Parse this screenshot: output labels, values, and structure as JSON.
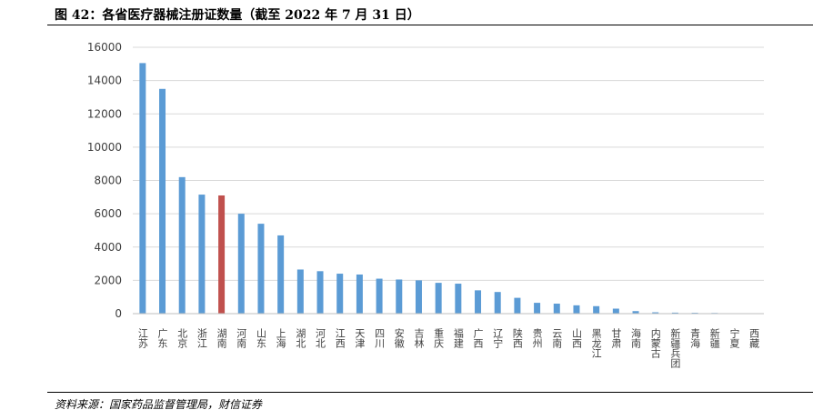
{
  "title": "图 42：各省医疗器械注册证数量（截至 2022 年 7 月 31 日）",
  "source": "资料来源：国家药品监督管理局，财信证券",
  "colors": {
    "bar": "#5B9BD5",
    "highlight": "#C0504D"
  },
  "chart_data": {
    "type": "bar",
    "title": "各省医疗器械注册证数量（截至 2022 年 7 月 31 日）",
    "xlabel": "",
    "ylabel": "",
    "ylim": [
      0,
      16000
    ],
    "yticks": [
      0,
      2000,
      4000,
      6000,
      8000,
      10000,
      12000,
      14000,
      16000
    ],
    "grid": true,
    "legend": "none",
    "highlight_category": "湖南",
    "categories": [
      "江苏",
      "广东",
      "北京",
      "浙江",
      "湖南",
      "河南",
      "山东",
      "上海",
      "湖北",
      "河北",
      "江西",
      "天津",
      "四川",
      "安徽",
      "吉林",
      "重庆",
      "福建",
      "广西",
      "辽宁",
      "陕西",
      "贵州",
      "云南",
      "山西",
      "黑龙江",
      "甘肃",
      "海南",
      "内蒙古",
      "新疆兵团",
      "青海",
      "新疆",
      "宁夏",
      "西藏"
    ],
    "values": [
      15050,
      13500,
      8200,
      7150,
      7100,
      6000,
      5400,
      4700,
      2650,
      2550,
      2400,
      2350,
      2100,
      2050,
      2000,
      1850,
      1800,
      1400,
      1300,
      950,
      650,
      600,
      500,
      450,
      300,
      150,
      80,
      60,
      50,
      40,
      10,
      5
    ]
  }
}
